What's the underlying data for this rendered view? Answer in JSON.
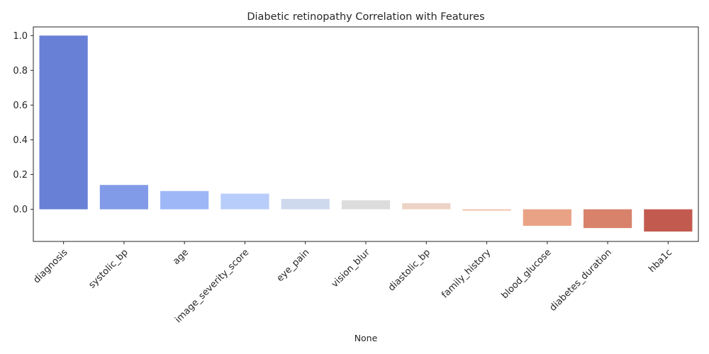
{
  "chart_data": {
    "type": "bar",
    "title": "Diabetic retinopathy Correlation with Features",
    "xlabel": "None",
    "ylabel": "",
    "categories": [
      "diagnosis",
      "systolic_bp",
      "age",
      "image_severity_score",
      "eye_pain",
      "vision_blur",
      "diastolic_bp",
      "family_history",
      "blood_glucose",
      "diabetes_duration",
      "hba1c"
    ],
    "values": [
      1.0,
      0.14,
      0.105,
      0.09,
      0.06,
      0.052,
      0.035,
      -0.008,
      -0.095,
      -0.108,
      -0.128
    ],
    "colors": [
      "#6880d5",
      "#829be8",
      "#9eb7f6",
      "#b8cdf9",
      "#cfd9ed",
      "#dddcdc",
      "#ecd3c6",
      "#f2c2ab",
      "#eaa286",
      "#d8826b",
      "#c35a50"
    ],
    "ylim": [
      -0.185,
      1.05
    ],
    "yticks": [
      0.0,
      0.2,
      0.4,
      0.6,
      0.8,
      1.0
    ],
    "ytick_labels": [
      "0.0",
      "0.2",
      "0.4",
      "0.6",
      "0.8",
      "1.0"
    ],
    "grid": false,
    "legend": "none"
  }
}
